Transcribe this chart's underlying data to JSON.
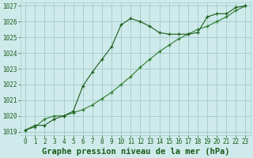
{
  "title": "Graphe pression niveau de la mer (hPa)",
  "background_color": "#ceeaea",
  "grid_color": "#a8cecc",
  "line_color_dark": "#1a5c1a",
  "line_color_mid": "#2d7a2d",
  "xlim": [
    -0.5,
    23.5
  ],
  "ylim": [
    1018.8,
    1027.2
  ],
  "yticks": [
    1019,
    1020,
    1021,
    1022,
    1023,
    1024,
    1025,
    1026,
    1027
  ],
  "xticks": [
    0,
    1,
    2,
    3,
    4,
    5,
    6,
    7,
    8,
    9,
    10,
    11,
    12,
    13,
    14,
    15,
    16,
    17,
    18,
    19,
    20,
    21,
    22,
    23
  ],
  "series1_x": [
    0,
    1,
    2,
    3,
    4,
    5,
    6,
    7,
    8,
    9,
    10,
    11,
    12,
    13,
    14,
    15,
    16,
    17,
    18,
    19,
    20,
    21,
    22,
    23
  ],
  "series1_y": [
    1019.1,
    1019.4,
    1019.4,
    1019.8,
    1020.0,
    1020.3,
    1021.9,
    1022.8,
    1023.6,
    1024.4,
    1025.8,
    1026.2,
    1026.0,
    1025.7,
    1025.3,
    1025.2,
    1025.2,
    1025.2,
    1025.3,
    1026.3,
    1026.5,
    1026.5,
    1026.9,
    1027.0
  ],
  "series2_x": [
    0,
    1,
    2,
    3,
    4,
    5,
    6,
    7,
    8,
    9,
    10,
    11,
    12,
    13,
    14,
    15,
    16,
    17,
    18,
    19,
    20,
    21,
    22,
    23
  ],
  "series2_y": [
    1019.1,
    1019.3,
    1019.8,
    1020.0,
    1020.0,
    1020.2,
    1020.4,
    1020.7,
    1021.1,
    1021.5,
    1022.0,
    1022.5,
    1023.1,
    1023.6,
    1024.1,
    1024.5,
    1024.9,
    1025.2,
    1025.5,
    1025.7,
    1026.0,
    1026.3,
    1026.7,
    1027.0
  ],
  "title_fontsize": 7.5,
  "tick_fontsize": 5.5
}
